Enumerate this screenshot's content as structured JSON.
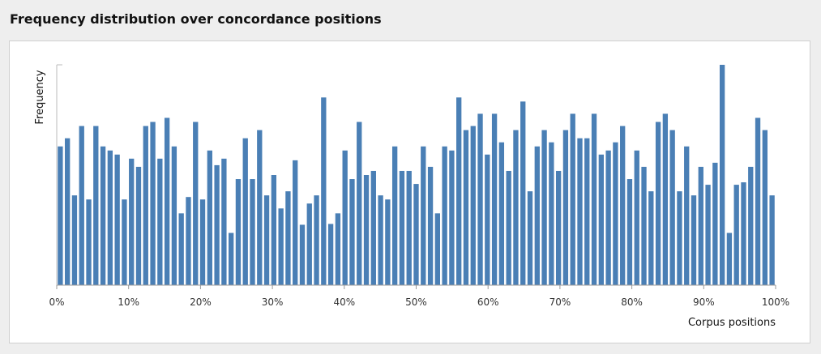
{
  "header": {
    "title": "Frequency distribution over concordance positions"
  },
  "chart_data": {
    "type": "bar",
    "title": "Frequency distribution over concordance positions",
    "xlabel": "Corpus positions",
    "ylabel": "Frequency",
    "xlim": [
      0,
      100
    ],
    "x_ticks": [
      "0%",
      "10%",
      "20%",
      "30%",
      "40%",
      "50%",
      "60%",
      "70%",
      "80%",
      "90%",
      "100%"
    ],
    "bar_color": "#4a7fb5",
    "y_ticks_labeled": false,
    "ylim": [
      0,
      27
    ],
    "values": [
      17,
      18,
      11,
      19.5,
      10.5,
      19.5,
      17,
      16.5,
      16,
      10.5,
      15.5,
      14.5,
      19.5,
      20,
      15.5,
      20.5,
      17,
      8.8,
      10.8,
      20,
      10.5,
      16.5,
      14.7,
      15.5,
      6.4,
      13,
      18,
      13,
      19,
      11,
      13.5,
      9.4,
      11.5,
      15.3,
      7.4,
      10,
      11,
      23,
      7.5,
      8.8,
      16.5,
      13,
      20,
      13.5,
      14,
      11,
      10.5,
      17,
      14,
      14,
      12.4,
      17,
      14.5,
      8.8,
      17,
      16.5,
      23,
      19,
      19.5,
      21,
      16,
      21,
      17.5,
      14,
      19,
      22.5,
      11.5,
      17,
      19,
      17.5,
      14,
      19,
      21,
      18,
      18,
      21,
      16,
      16.5,
      17.5,
      19.5,
      13,
      16.5,
      14.5,
      11.5,
      20,
      21,
      19,
      11.5,
      17,
      11,
      14.5,
      12.3,
      15,
      27,
      6.4,
      12.3,
      12.6,
      14.5,
      20.5,
      19,
      11
    ]
  }
}
